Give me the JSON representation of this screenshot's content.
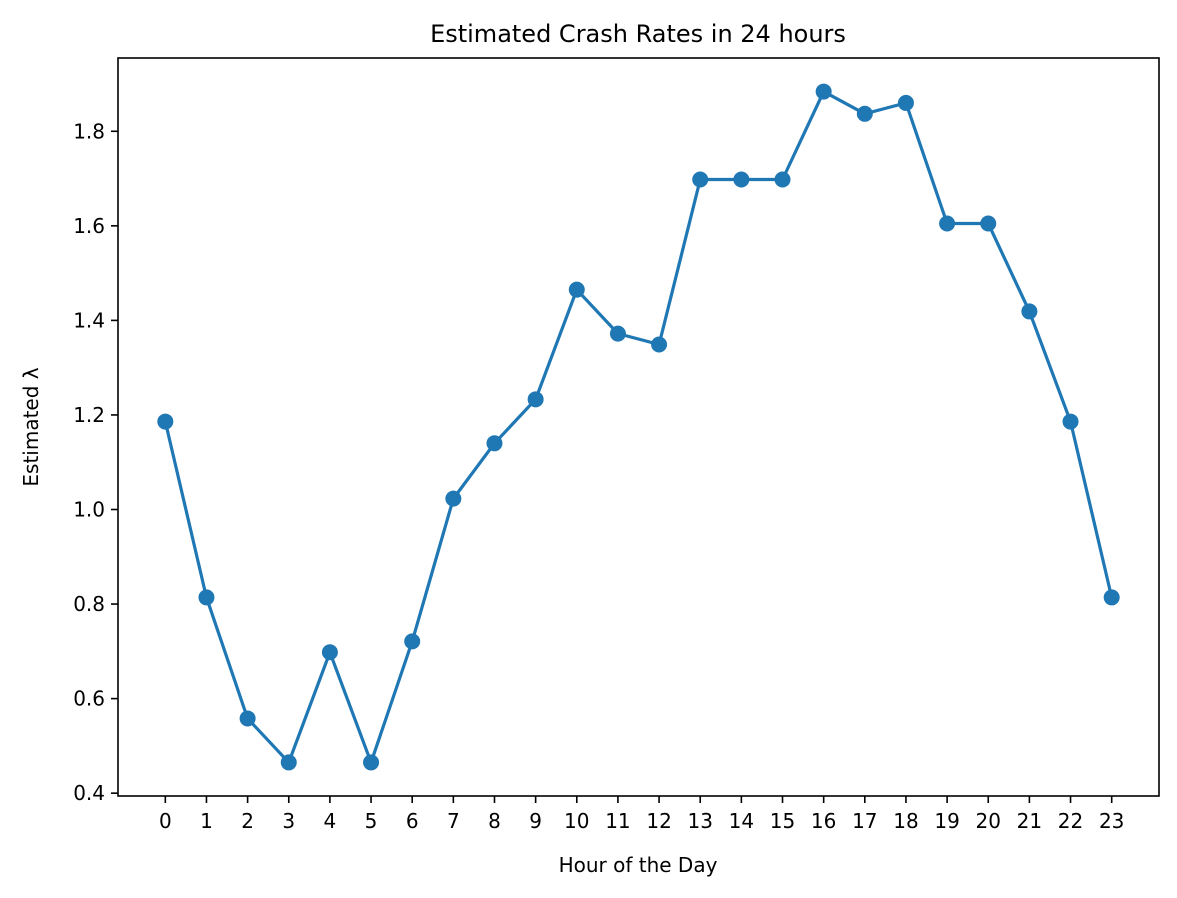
{
  "chart_data": {
    "type": "line",
    "title": "Estimated Crash Rates in 24 hours",
    "xlabel": "Hour of the Day",
    "ylabel": "Estimated λ",
    "x": [
      0,
      1,
      2,
      3,
      4,
      5,
      6,
      7,
      8,
      9,
      10,
      11,
      12,
      13,
      14,
      15,
      16,
      17,
      18,
      19,
      20,
      21,
      22,
      23
    ],
    "x_tick_labels": [
      "0",
      "1",
      "2",
      "3",
      "4",
      "5",
      "6",
      "7",
      "8",
      "9",
      "10",
      "11",
      "12",
      "13",
      "14",
      "15",
      "16",
      "17",
      "18",
      "19",
      "20",
      "21",
      "22",
      "23"
    ],
    "series": [
      {
        "values": [
          1.186,
          0.814,
          0.558,
          0.465,
          0.698,
          0.465,
          0.721,
          1.023,
          1.14,
          1.233,
          1.465,
          1.372,
          1.349,
          1.698,
          1.698,
          1.698,
          1.884,
          1.837,
          1.86,
          1.605,
          1.605,
          1.419,
          1.186,
          0.814
        ],
        "color": "#1f77b4",
        "marker": "circle"
      }
    ],
    "y_ticks": [
      0.4,
      0.6,
      0.8,
      1.0,
      1.2,
      1.4,
      1.6,
      1.8
    ],
    "y_tick_labels": [
      "0.4",
      "0.6",
      "0.8",
      "1.0",
      "1.2",
      "1.4",
      "1.6",
      "1.8"
    ],
    "xlim": [
      -1.15,
      24.15
    ],
    "ylim": [
      0.394,
      1.955
    ],
    "grid": false,
    "legend": "none"
  }
}
